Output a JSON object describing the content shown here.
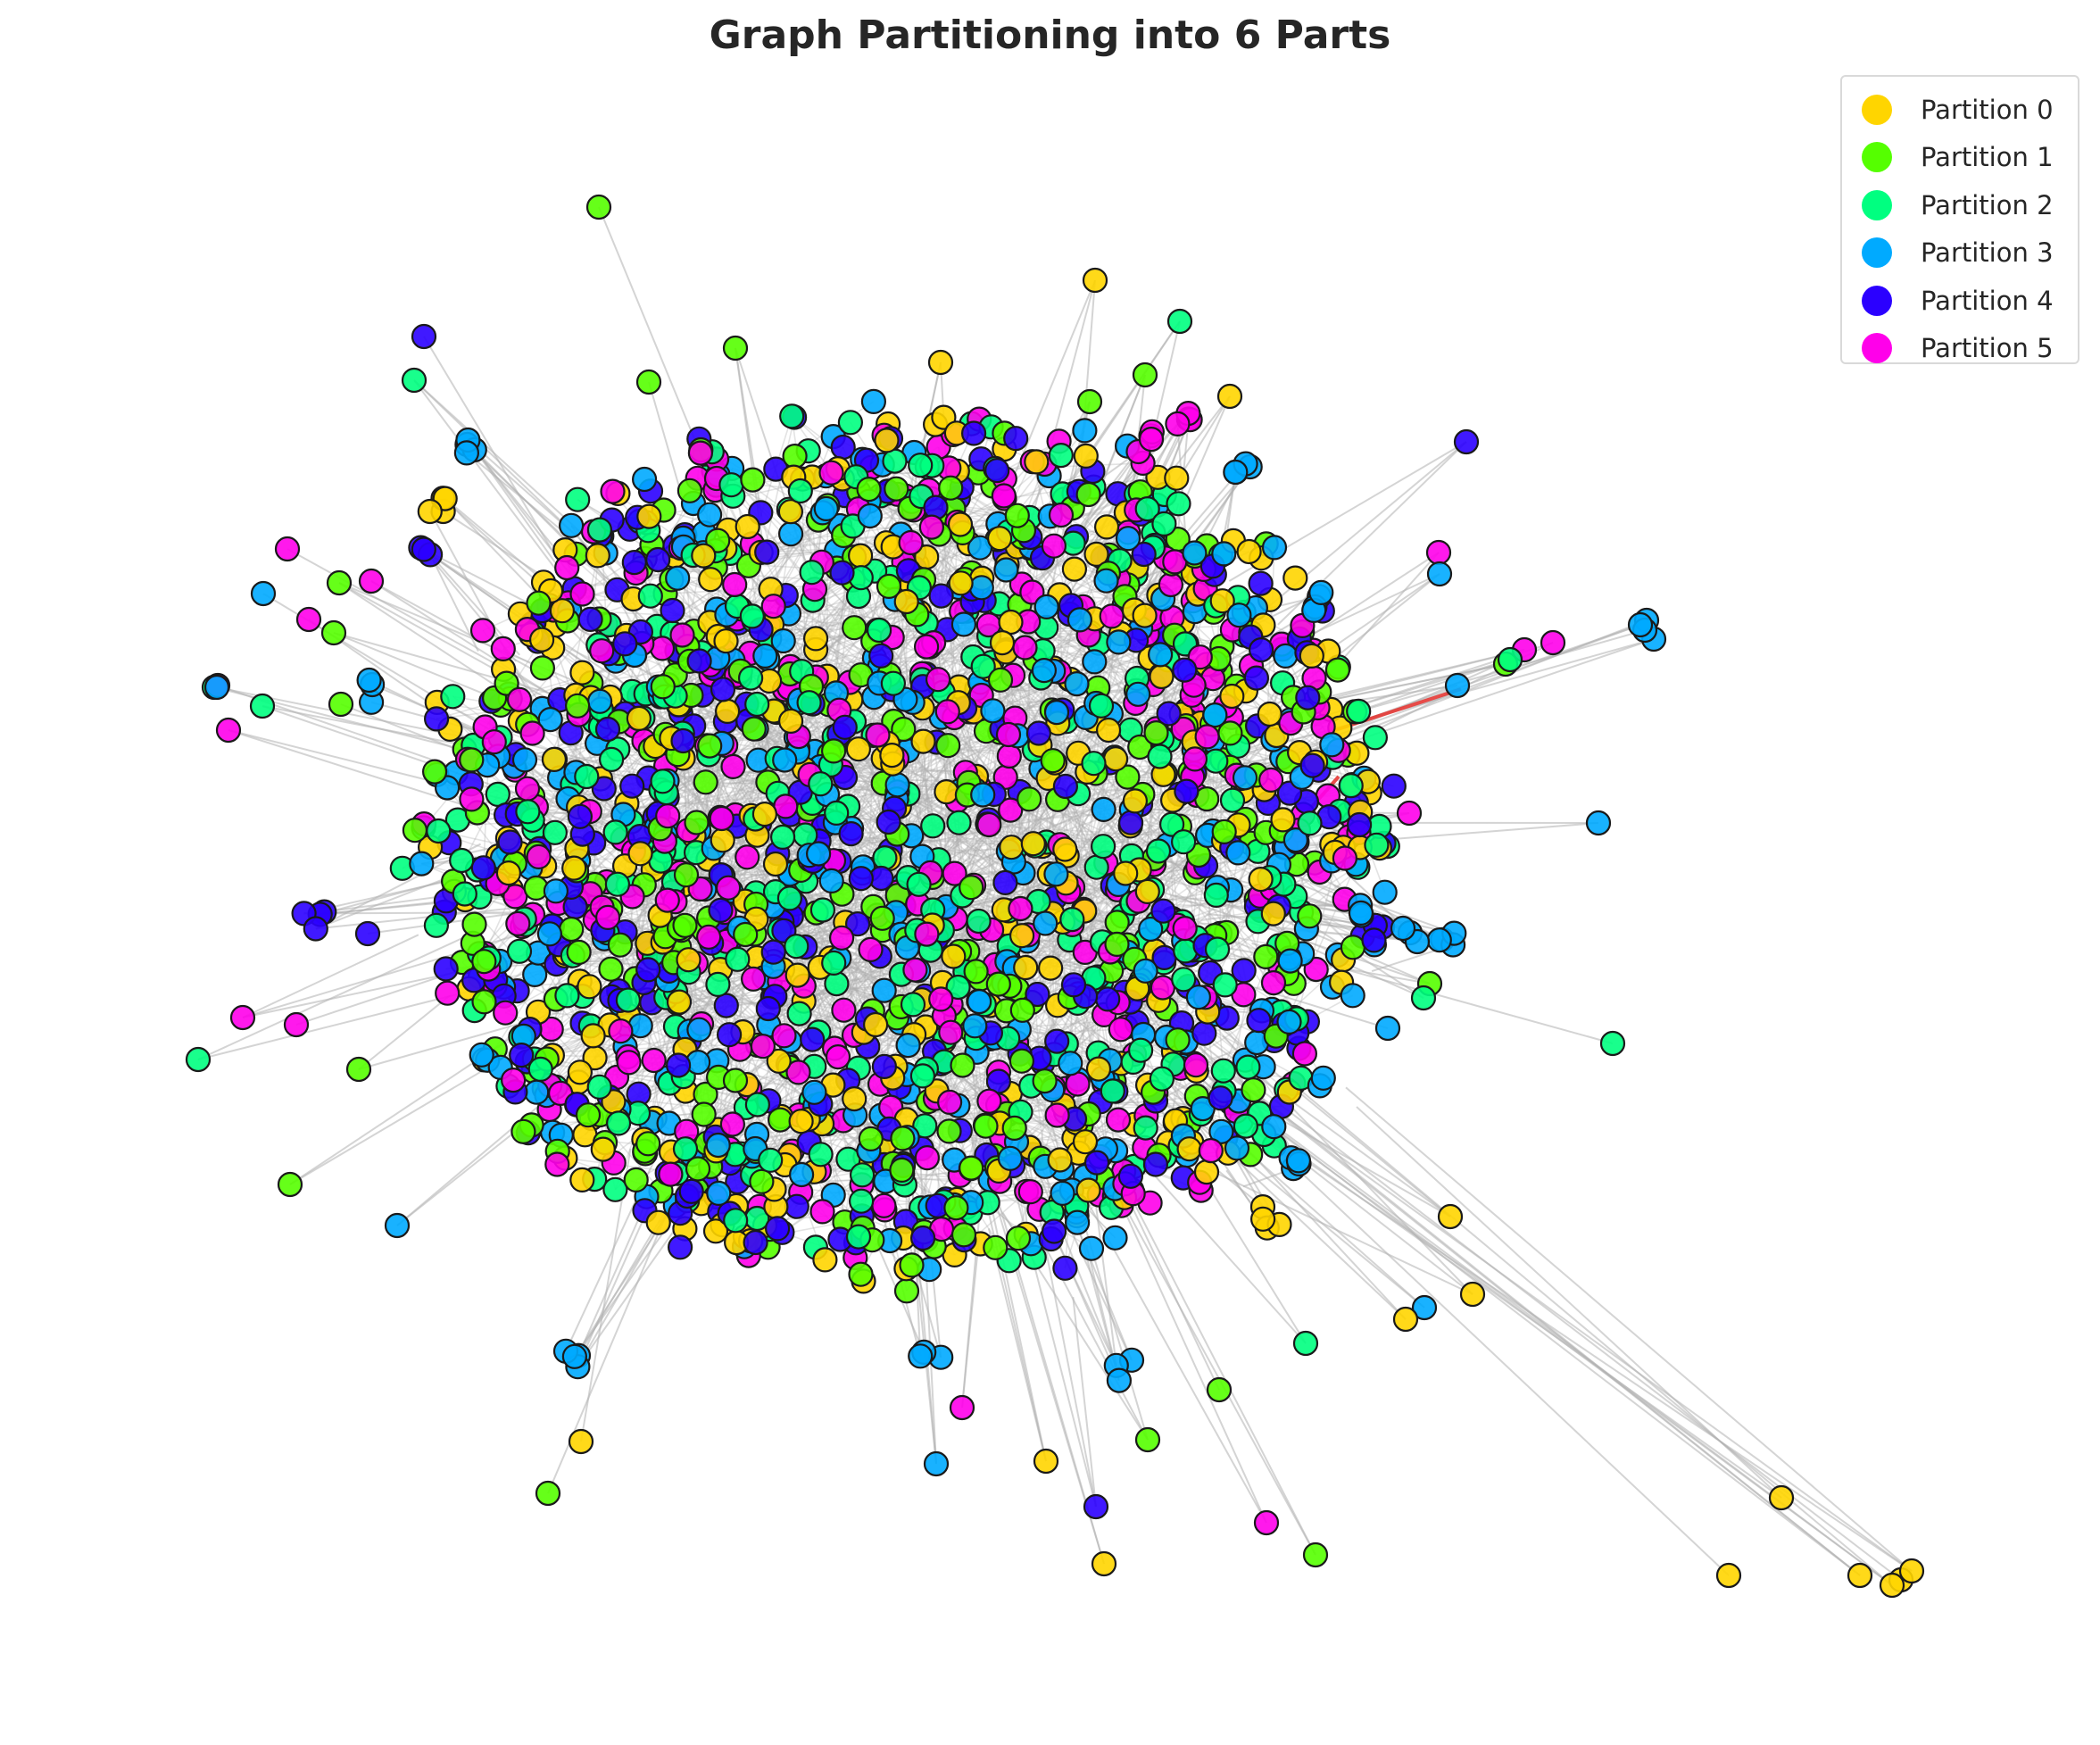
{
  "title": "Graph Partitioning into 6 Parts",
  "partitions": [
    {
      "label": "Partition 0",
      "color": "#FFD500"
    },
    {
      "label": "Partition 1",
      "color": "#55FF00"
    },
    {
      "label": "Partition 2",
      "color": "#00FF80"
    },
    {
      "label": "Partition 3",
      "color": "#00AAFF"
    },
    {
      "label": "Partition 4",
      "color": "#2B00FF"
    },
    {
      "label": "Partition 5",
      "color": "#FF00EA"
    }
  ],
  "cut_edge_color": "#E53935",
  "chart_data": {
    "type": "network",
    "title": "Graph Partitioning into 6 Parts",
    "num_partitions": 6,
    "legend": [
      "Partition 0",
      "Partition 1",
      "Partition 2",
      "Partition 3",
      "Partition 4",
      "Partition 5"
    ],
    "legend_position": "top-right",
    "axes": "off",
    "node_edge_color": "#1a1a1a",
    "edge_color": "#b0b0b0"
  }
}
